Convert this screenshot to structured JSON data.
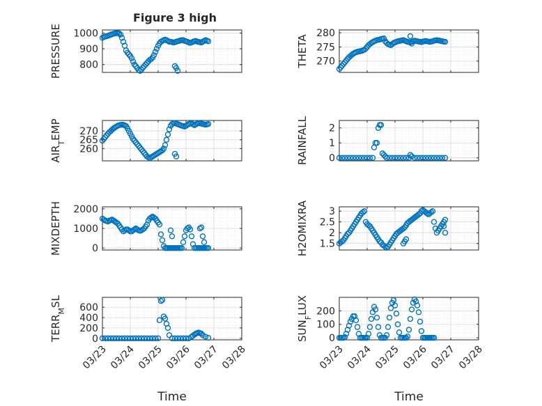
{
  "figure": {
    "title": "Figure 3 high",
    "background": "#ffffff",
    "marker_color": "#0072BD",
    "grid_color": "#d9d9d9",
    "axis_color": "#262626"
  },
  "chart_data": [
    {
      "type": "scatter",
      "ylabel": "PRESSURE",
      "ylim": [
        750,
        1020
      ],
      "yticks": [
        800,
        900,
        1000
      ],
      "grid": true,
      "marker": "open-circle",
      "x": [
        0,
        0.05,
        0.1,
        0.15,
        0.2,
        0.25,
        0.3,
        0.35,
        0.4,
        0.45,
        0.5,
        0.55,
        0.6,
        0.65,
        0.7,
        0.75,
        0.8,
        0.85,
        0.9,
        0.95,
        1.0,
        1.05,
        1.1,
        1.15,
        1.2,
        1.25,
        1.3,
        1.35,
        1.4,
        1.45,
        1.5,
        1.55,
        1.6,
        1.65,
        1.7,
        1.75,
        1.8,
        1.85,
        1.9,
        1.95,
        2.0,
        2.05,
        2.1,
        2.15,
        2.2,
        2.25,
        2.3,
        2.35,
        2.4,
        2.45,
        2.5,
        2.55,
        2.6,
        2.65,
        2.7,
        2.75,
        2.8,
        2.85,
        2.9,
        2.95,
        3.0,
        3.05,
        3.1,
        3.15,
        3.2,
        3.25,
        3.3,
        3.35,
        3.4,
        3.45,
        3.5,
        3.55,
        3.6,
        3.65,
        3.7,
        3.75,
        3.8,
        2.6,
        2.65,
        2.7
      ],
      "y": [
        970,
        975,
        978,
        980,
        983,
        986,
        990,
        993,
        996,
        998,
        1000,
        1000,
        998,
        990,
        970,
        945,
        920,
        890,
        875,
        865,
        855,
        840,
        820,
        800,
        790,
        778,
        765,
        760,
        768,
        780,
        790,
        800,
        810,
        820,
        830,
        835,
        845,
        860,
        880,
        900,
        920,
        935,
        945,
        950,
        955,
        958,
        955,
        950,
        945,
        945,
        943,
        940,
        942,
        945,
        948,
        950,
        953,
        955,
        955,
        950,
        948,
        945,
        940,
        938,
        940,
        945,
        948,
        950,
        946,
        944,
        942,
        940,
        945,
        950,
        955,
        952,
        948,
        790,
        778,
        760
      ]
    },
    {
      "type": "scatter",
      "ylabel": "THETA",
      "ylim": [
        266,
        281
      ],
      "yticks": [
        270,
        275,
        280
      ],
      "grid": true,
      "marker": "open-circle",
      "x": [
        0,
        0.05,
        0.1,
        0.15,
        0.2,
        0.25,
        0.3,
        0.35,
        0.4,
        0.45,
        0.5,
        0.55,
        0.6,
        0.65,
        0.7,
        0.75,
        0.8,
        0.85,
        0.9,
        0.95,
        1.0,
        1.05,
        1.1,
        1.15,
        1.2,
        1.25,
        1.3,
        1.35,
        1.4,
        1.45,
        1.5,
        1.55,
        1.6,
        1.65,
        1.7,
        1.75,
        1.8,
        1.85,
        1.9,
        1.95,
        2.0,
        2.05,
        2.1,
        2.15,
        2.2,
        2.25,
        2.3,
        2.35,
        2.4,
        2.45,
        2.5,
        2.55,
        2.6,
        2.65,
        2.7,
        2.75,
        2.8,
        2.85,
        2.9,
        2.95,
        3.0,
        3.05,
        3.1,
        3.15,
        3.2,
        3.25,
        3.3,
        3.35,
        3.4,
        3.45,
        3.5,
        3.55,
        3.6,
        3.65,
        3.7,
        3.75,
        3.8,
        2.55,
        2.6
      ],
      "y": [
        267.2,
        267.8,
        268.4,
        269.0,
        269.6,
        270.2,
        270.8,
        271.3,
        271.8,
        272.2,
        272.6,
        272.9,
        273.1,
        273.3,
        273.4,
        273.5,
        273.6,
        273.8,
        274.0,
        274.4,
        275.0,
        275.6,
        276.0,
        276.4,
        276.7,
        277.0,
        277.2,
        277.4,
        277.5,
        277.6,
        277.8,
        277.9,
        278.0,
        277.0,
        276.4,
        276.0,
        275.8,
        275.6,
        276.0,
        276.4,
        276.6,
        276.8,
        277.0,
        277.1,
        277.2,
        277.3,
        277.4,
        277.2,
        277.0,
        276.8,
        276.7,
        276.6,
        276.8,
        277.0,
        277.2,
        277.1,
        277.0,
        276.9,
        276.8,
        276.7,
        276.9,
        277.0,
        277.1,
        277.0,
        276.9,
        276.8,
        276.9,
        277.0,
        277.2,
        277.3,
        277.4,
        277.3,
        277.2,
        277.1,
        277.0,
        276.9,
        276.8,
        278.8,
        276.2
      ]
    },
    {
      "type": "scatter",
      "ylabel": "AIR_TEMP",
      "ylim": [
        253,
        276
      ],
      "yticks": [
        260,
        265,
        270
      ],
      "grid": true,
      "marker": "open-circle",
      "x": [
        0,
        0.05,
        0.1,
        0.15,
        0.2,
        0.25,
        0.3,
        0.35,
        0.4,
        0.45,
        0.5,
        0.55,
        0.6,
        0.65,
        0.7,
        0.75,
        0.8,
        0.85,
        0.9,
        0.95,
        1.0,
        1.05,
        1.1,
        1.15,
        1.2,
        1.25,
        1.3,
        1.35,
        1.4,
        1.45,
        1.5,
        1.55,
        1.6,
        1.65,
        1.7,
        1.75,
        1.8,
        1.85,
        1.9,
        1.95,
        2.0,
        2.05,
        2.1,
        2.15,
        2.2,
        2.25,
        2.3,
        2.35,
        2.4,
        2.45,
        2.5,
        2.55,
        2.6,
        2.65,
        2.7,
        2.75,
        2.8,
        2.85,
        2.9,
        2.95,
        3.0,
        3.05,
        3.1,
        3.15,
        3.2,
        3.25,
        3.3,
        3.35,
        3.4,
        3.45,
        3.5,
        3.55,
        3.6,
        3.65,
        3.7,
        3.75,
        3.8,
        2.6,
        2.65
      ],
      "y": [
        264.5,
        265.5,
        266.5,
        267.5,
        268.5,
        269.3,
        270.0,
        270.8,
        271.5,
        272.0,
        272.5,
        273.0,
        273.3,
        273.5,
        273.6,
        273.5,
        273.2,
        272.8,
        271.5,
        270.0,
        268.5,
        267.0,
        265.5,
        264.5,
        263.5,
        262.5,
        261.5,
        260.5,
        259.5,
        258.5,
        257.5,
        256.5,
        255.5,
        255.0,
        254.5,
        255.0,
        255.5,
        256.0,
        256.5,
        257.0,
        257.5,
        258.0,
        258.5,
        259.0,
        260.0,
        262.0,
        265.0,
        268.0,
        271.0,
        273.0,
        274.0,
        274.5,
        274.5,
        274.2,
        274.0,
        273.6,
        273.3,
        273.0,
        272.8,
        272.5,
        273.0,
        273.5,
        274.0,
        274.2,
        274.4,
        273.8,
        273.3,
        273.8,
        274.2,
        274.5,
        274.4,
        274.2,
        274.0,
        273.8,
        273.6,
        273.8,
        274.0,
        257.0,
        255.5
      ]
    },
    {
      "type": "scatter",
      "ylabel": "RAINFALL",
      "ylim": [
        -0.2,
        2.5
      ],
      "yticks": [
        0,
        1,
        2
      ],
      "grid": true,
      "marker": "open-circle",
      "x": [
        0,
        0.1,
        0.2,
        0.3,
        0.4,
        0.5,
        0.6,
        0.7,
        0.8,
        0.9,
        1.0,
        1.1,
        1.2,
        1.25,
        1.3,
        1.35,
        1.4,
        1.45,
        1.5,
        1.55,
        1.6,
        1.65,
        1.7,
        1.8,
        1.9,
        2.0,
        2.1,
        2.2,
        2.3,
        2.4,
        2.5,
        2.55,
        2.6,
        2.7,
        2.8,
        2.9,
        3.0,
        3.1,
        3.2,
        3.3,
        3.4,
        3.5,
        3.6,
        3.7,
        3.8
      ],
      "y": [
        0,
        0,
        0,
        0,
        0,
        0,
        0,
        0,
        0,
        0,
        0,
        0,
        0,
        0.7,
        1.0,
        1.0,
        2.0,
        2.2,
        2.2,
        0.3,
        0.2,
        0.1,
        0,
        0,
        0,
        0,
        0,
        0,
        0,
        0,
        0,
        0.2,
        0.1,
        0,
        0,
        0,
        0,
        0,
        0,
        0,
        0,
        0,
        0,
        0,
        0
      ]
    },
    {
      "type": "scatter",
      "ylabel": "MIXDEPTH",
      "ylim": [
        -100,
        2100
      ],
      "yticks": [
        0,
        1000,
        2000
      ],
      "grid": true,
      "marker": "open-circle",
      "x": [
        0,
        0.05,
        0.1,
        0.15,
        0.2,
        0.25,
        0.3,
        0.35,
        0.4,
        0.45,
        0.5,
        0.55,
        0.6,
        0.65,
        0.7,
        0.75,
        0.8,
        0.85,
        0.9,
        0.95,
        1.0,
        1.05,
        1.1,
        1.15,
        1.2,
        1.25,
        1.3,
        1.35,
        1.4,
        1.45,
        1.5,
        1.55,
        1.6,
        1.65,
        1.7,
        1.75,
        1.8,
        1.85,
        1.9,
        1.95,
        2.0,
        2.05,
        2.1,
        2.15,
        2.2,
        2.25,
        2.3,
        2.35,
        2.4,
        2.45,
        2.5,
        2.55,
        2.6,
        2.65,
        2.7,
        2.75,
        2.8,
        2.85,
        2.9,
        2.95,
        3.0,
        3.05,
        3.1,
        3.15,
        3.2,
        3.25,
        3.3,
        3.35,
        3.4,
        3.45,
        3.5,
        3.55,
        3.6,
        3.65,
        3.7,
        3.75,
        3.8,
        2.45,
        2.5,
        3.5,
        3.55,
        3.6,
        3.65
      ],
      "y": [
        1500,
        1450,
        1400,
        1380,
        1350,
        1400,
        1420,
        1450,
        1400,
        1350,
        1300,
        1250,
        1150,
        1050,
        950,
        850,
        900,
        950,
        950,
        900,
        850,
        850,
        900,
        950,
        1000,
        950,
        900,
        880,
        900,
        950,
        1000,
        1100,
        1200,
        1400,
        1500,
        1550,
        1600,
        1550,
        1500,
        1400,
        1300,
        1200,
        700,
        400,
        100,
        0,
        0,
        0,
        0,
        0,
        0,
        0,
        0,
        0,
        0,
        0,
        0,
        0,
        300,
        600,
        900,
        1000,
        1050,
        950,
        600,
        200,
        0,
        0,
        0,
        0,
        0,
        0,
        0,
        0,
        0,
        0,
        0,
        900,
        600,
        1000,
        1050,
        600,
        300
      ]
    },
    {
      "type": "scatter",
      "ylabel": "H2OMIXRA",
      "ylim": [
        1.2,
        3.2
      ],
      "yticks": [
        1.5,
        2,
        2.5,
        3
      ],
      "yticklabels": [
        "1.5",
        "2",
        "2.5",
        "3"
      ],
      "grid": true,
      "marker": "open-circle",
      "x": [
        0,
        0.05,
        0.1,
        0.15,
        0.2,
        0.25,
        0.3,
        0.35,
        0.4,
        0.45,
        0.5,
        0.55,
        0.6,
        0.65,
        0.7,
        0.75,
        0.8,
        0.85,
        0.9,
        0.95,
        1.0,
        1.05,
        1.1,
        1.15,
        1.2,
        1.25,
        1.3,
        1.35,
        1.4,
        1.45,
        1.5,
        1.55,
        1.6,
        1.65,
        1.7,
        1.75,
        1.8,
        1.85,
        1.9,
        1.95,
        2.0,
        2.05,
        2.1,
        2.15,
        2.2,
        2.25,
        2.3,
        2.35,
        2.4,
        2.45,
        2.5,
        2.55,
        2.6,
        2.65,
        2.7,
        2.75,
        2.8,
        2.85,
        2.9,
        2.95,
        3.0,
        3.05,
        3.1,
        3.15,
        3.2,
        3.25,
        3.3,
        3.35,
        3.4,
        3.45,
        3.5,
        3.55,
        3.6,
        3.65,
        3.7,
        3.75,
        3.8,
        2.3,
        2.35,
        2.4,
        3.75,
        3.8
      ],
      "y": [
        1.5,
        1.55,
        1.6,
        1.65,
        1.75,
        1.85,
        1.95,
        2.0,
        2.1,
        2.2,
        2.3,
        2.4,
        2.5,
        2.6,
        2.7,
        2.8,
        2.9,
        2.95,
        3.0,
        2.5,
        2.4,
        2.35,
        2.3,
        2.2,
        2.1,
        2.0,
        1.9,
        1.8,
        1.7,
        1.6,
        1.55,
        1.45,
        1.4,
        1.35,
        1.3,
        1.35,
        1.45,
        1.55,
        1.65,
        1.75,
        1.85,
        1.95,
        2.0,
        2.05,
        2.1,
        2.15,
        2.2,
        2.25,
        2.35,
        2.45,
        2.5,
        2.55,
        2.6,
        2.65,
        2.7,
        2.75,
        2.8,
        2.85,
        2.9,
        3.0,
        3.05,
        3.0,
        2.95,
        2.9,
        2.85,
        2.9,
        2.95,
        3.0,
        2.5,
        2.2,
        2.0,
        2.1,
        2.2,
        2.3,
        2.4,
        2.5,
        2.6,
        1.5,
        1.6,
        1.7,
        2.3,
        2.0
      ]
    },
    {
      "type": "scatter",
      "ylabel": "TERR_MSL",
      "ylim": [
        -30,
        790
      ],
      "yticks": [
        0,
        200,
        400,
        600
      ],
      "grid": true,
      "marker": "open-circle",
      "x": [
        0,
        0.1,
        0.2,
        0.3,
        0.4,
        0.5,
        0.6,
        0.7,
        0.8,
        0.9,
        1.0,
        1.1,
        1.2,
        1.3,
        1.4,
        1.5,
        1.6,
        1.7,
        1.8,
        1.9,
        2.0,
        2.05,
        2.1,
        2.15,
        2.2,
        2.25,
        2.3,
        2.35,
        2.4,
        2.5,
        2.6,
        2.7,
        2.8,
        2.9,
        3.0,
        3.1,
        3.2,
        3.25,
        3.3,
        3.35,
        3.4,
        3.45,
        3.5,
        3.55,
        3.6,
        3.7,
        3.8
      ],
      "y": [
        0,
        0,
        0,
        0,
        0,
        0,
        0,
        0,
        0,
        0,
        0,
        0,
        0,
        0,
        0,
        0,
        0,
        0,
        0,
        0,
        0,
        350,
        720,
        740,
        420,
        380,
        280,
        200,
        60,
        0,
        0,
        0,
        0,
        0,
        0,
        0,
        30,
        50,
        70,
        90,
        100,
        110,
        100,
        90,
        60,
        30,
        10
      ]
    },
    {
      "type": "scatter",
      "ylabel": "SUN_FLUX",
      "ylim": [
        -15,
        300
      ],
      "yticks": [
        0,
        100,
        200
      ],
      "grid": true,
      "marker": "open-circle",
      "x": [
        0,
        0.05,
        0.1,
        0.15,
        0.2,
        0.25,
        0.3,
        0.35,
        0.4,
        0.45,
        0.5,
        0.55,
        0.6,
        0.65,
        0.7,
        0.75,
        0.8,
        0.85,
        0.9,
        0.95,
        1.0,
        1.05,
        1.1,
        1.15,
        1.2,
        1.25,
        1.3,
        1.35,
        1.4,
        1.45,
        1.5,
        1.55,
        1.6,
        1.65,
        1.7,
        1.75,
        1.8,
        1.85,
        1.9,
        1.95,
        2.0,
        2.05,
        2.1,
        2.15,
        2.2,
        2.25,
        2.3,
        2.35,
        2.4,
        2.45,
        2.5,
        2.55,
        2.6,
        2.65,
        2.7,
        2.75,
        2.8,
        2.85,
        2.9,
        2.95,
        3.0,
        3.05,
        3.1,
        3.15,
        3.2,
        3.25,
        3.3,
        3.35,
        3.4
      ],
      "y": [
        0,
        0,
        0,
        0,
        5,
        30,
        60,
        90,
        120,
        140,
        160,
        160,
        130,
        80,
        30,
        0,
        0,
        0,
        0,
        0,
        0,
        30,
        80,
        140,
        190,
        230,
        210,
        150,
        80,
        20,
        0,
        0,
        0,
        0,
        20,
        80,
        150,
        220,
        260,
        280,
        240,
        180,
        100,
        40,
        0,
        0,
        0,
        0,
        0,
        10,
        60,
        140,
        210,
        260,
        285,
        270,
        240,
        190,
        120,
        50,
        0,
        0,
        0,
        0,
        0,
        0,
        0,
        0,
        0
      ]
    }
  ],
  "xaxis": {
    "label": "Time",
    "range": [
      0,
      5
    ],
    "tick_values": [
      0,
      1,
      2,
      3,
      4,
      5
    ],
    "tick_labels": [
      "03/23",
      "03/24",
      "03/25",
      "03/26",
      "03/27",
      "03/28"
    ]
  }
}
